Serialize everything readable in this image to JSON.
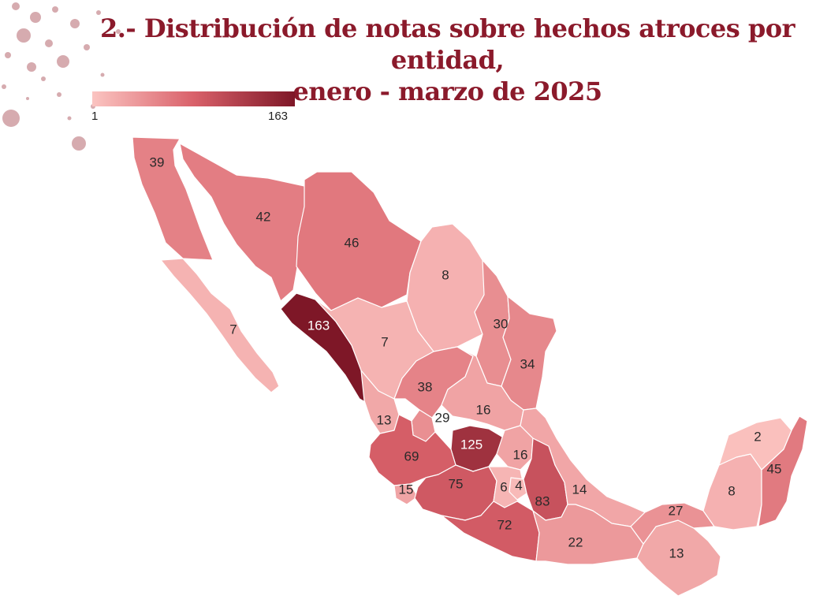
{
  "title_line1": "2.- Distribución de notas sobre hechos atroces por entidad,",
  "title_line2": "enero - marzo de 2025",
  "legend": {
    "min_label": "1",
    "max_label": "163",
    "min": 1,
    "max": 163,
    "color_low": "#fbc4c1",
    "color_high": "#7e1727"
  },
  "states": [
    {
      "id": "baja-california",
      "value": "39"
    },
    {
      "id": "sonora",
      "value": "42"
    },
    {
      "id": "chihuahua",
      "value": "46"
    },
    {
      "id": "coahuila",
      "value": "8"
    },
    {
      "id": "baja-california-sur",
      "value": "7"
    },
    {
      "id": "sinaloa",
      "value": "163"
    },
    {
      "id": "durango",
      "value": "7"
    },
    {
      "id": "nuevo-leon",
      "value": "30"
    },
    {
      "id": "tamaulipas",
      "value": "34"
    },
    {
      "id": "zacatecas",
      "value": "38"
    },
    {
      "id": "nayarit",
      "value": "13"
    },
    {
      "id": "aguascalientes",
      "value": "29"
    },
    {
      "id": "san-luis-potosi",
      "value": "16"
    },
    {
      "id": "guanajuato",
      "value": "125"
    },
    {
      "id": "queretaro",
      "value": "16"
    },
    {
      "id": "jalisco",
      "value": "69"
    },
    {
      "id": "colima",
      "value": "15"
    },
    {
      "id": "michoacan",
      "value": "75"
    },
    {
      "id": "estado-de-mexico",
      "value": "6"
    },
    {
      "id": "ciudad-de-mexico",
      "value": "4"
    },
    {
      "id": "puebla",
      "value": "83"
    },
    {
      "id": "veracruz",
      "value": "14"
    },
    {
      "id": "guerrero",
      "value": "72"
    },
    {
      "id": "oaxaca",
      "value": "22"
    },
    {
      "id": "chiapas",
      "value": "13"
    },
    {
      "id": "tabasco",
      "value": "27"
    },
    {
      "id": "campeche",
      "value": "8"
    },
    {
      "id": "yucatan",
      "value": "2"
    },
    {
      "id": "quintana-roo",
      "value": "45"
    }
  ]
}
